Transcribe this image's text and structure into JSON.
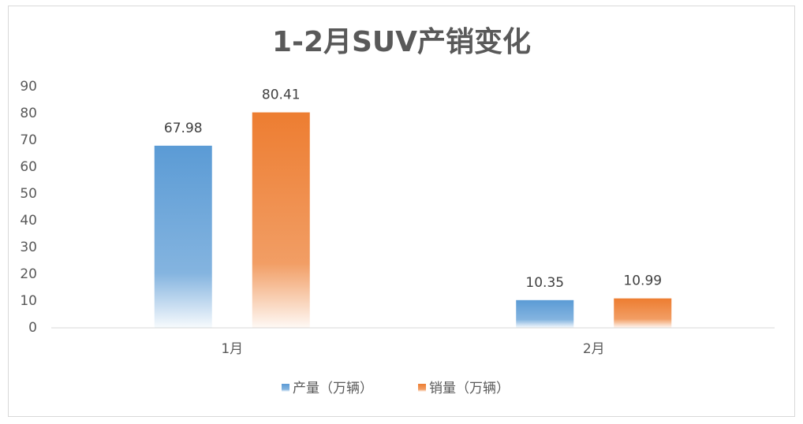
{
  "chart_data": {
    "type": "bar",
    "title": "1-2月SUV产销变化",
    "categories": [
      "1月",
      "2月"
    ],
    "series": [
      {
        "name": "产量（万辆）",
        "color": "#5b9bd5",
        "values": [
          67.98,
          10.35
        ]
      },
      {
        "name": "销量（万辆）",
        "color": "#ed7d31",
        "values": [
          80.41,
          10.99
        ]
      }
    ],
    "ylim": [
      0,
      90
    ],
    "yticks": [
      0,
      10,
      20,
      30,
      40,
      50,
      60,
      70,
      80,
      90
    ],
    "grid": false,
    "legend": "bottom",
    "data_labels": true
  }
}
